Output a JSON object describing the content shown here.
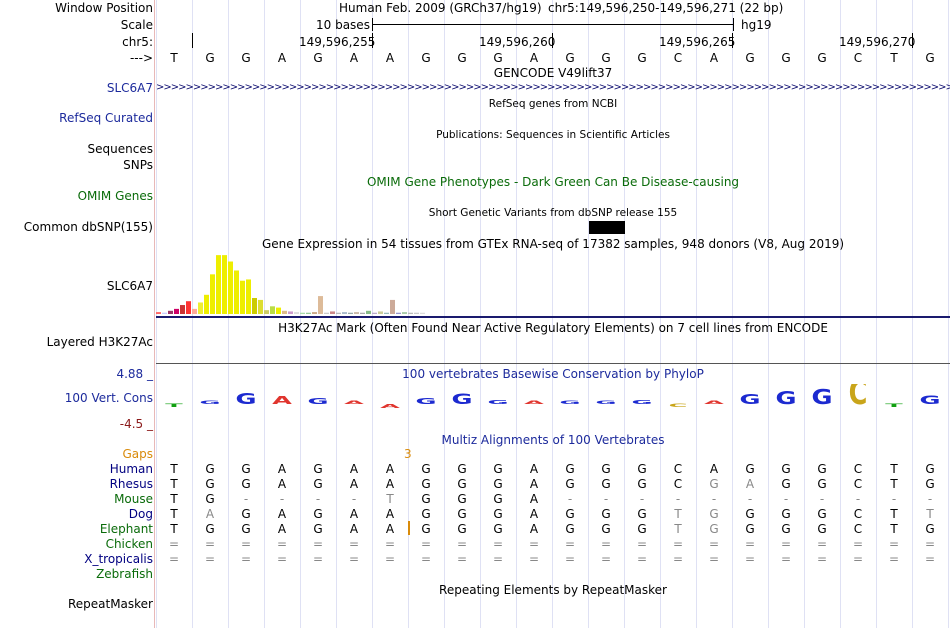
{
  "header": {
    "window_position_label": "Window Position",
    "scale_label": "Scale",
    "chrom_label": "chr5:",
    "strand_label": "--->",
    "assembly_text": "Human Feb. 2009 (GRCh37/hg19)",
    "position_text": "chr5:149,596,250-149,596,271 (22 bp)",
    "scale_text": "10 bases",
    "db_text": "hg19",
    "ticks": [
      "149,596,255",
      "149,596,260",
      "149,596,265",
      "149,596,270"
    ]
  },
  "sequence": [
    "T",
    "G",
    "G",
    "A",
    "G",
    "A",
    "A",
    "G",
    "G",
    "G",
    "A",
    "G",
    "G",
    "G",
    "C",
    "A",
    "G",
    "G",
    "G",
    "C",
    "T",
    "G"
  ],
  "tracks": {
    "gencode": {
      "title": "GENCODE V49lift37",
      "label": "SLC6A7"
    },
    "refseq": {
      "title": "RefSeq genes from NCBI",
      "label": "RefSeq Curated"
    },
    "publications": {
      "title": "Publications: Sequences in Scientific Articles",
      "label1": "Sequences",
      "label2": "SNPs"
    },
    "omim": {
      "title": "OMIM Gene Phenotypes - Dark Green Can Be Disease-causing",
      "label": "OMIM Genes"
    },
    "dbsnp": {
      "title": "Short Genetic Variants from dbSNP release 155",
      "label": "Common dbSNP(155)"
    },
    "gtex": {
      "title": "Gene Expression in 54 tissues from GTEx RNA-seq of 17382 samples, 948 donors (V8, Aug 2019)",
      "label": "SLC6A7",
      "values": [
        3,
        2,
        5,
        8,
        14,
        20,
        8,
        18,
        30,
        62,
        92,
        92,
        82,
        68,
        52,
        54,
        25,
        22,
        6,
        12,
        10,
        5,
        4,
        3,
        2,
        2,
        3,
        28,
        2,
        4,
        2,
        3,
        2,
        3,
        2,
        5,
        2,
        4,
        2,
        22,
        2,
        3,
        2,
        2,
        2
      ],
      "colors": [
        "#ff6666",
        "#ccccff",
        "#993366",
        "#cc0066",
        "#cc3333",
        "#ff3333",
        "#ffaa99",
        "#eeee33",
        "#eeee00",
        "#eeee00",
        "#eeee00",
        "#eeee00",
        "#eeee00",
        "#eeee00",
        "#eeee00",
        "#eeee00",
        "#cccc00",
        "#dddd33",
        "#cccc66",
        "#bbdd44",
        "#eeee00",
        "#ddbb88",
        "#cc99cc",
        "#dddddd",
        "#aaddaa",
        "#99cc99",
        "#ccaa88",
        "#ddbb99",
        "#cccccc",
        "#cc8888",
        "#bbbbbb",
        "#aabbcc",
        "#99aaaa",
        "#ccbbaa",
        "#aaaaaa",
        "#88bb88",
        "#bbaacc",
        "#cccc99",
        "#99bbbb",
        "#ccaa99",
        "#9999cc",
        "#aaccaa",
        "#bbbbbb",
        "#cccccc",
        "#dddddd"
      ]
    },
    "h3k27ac": {
      "title": "H3K27Ac Mark (Often Found Near Active Regulatory Elements) on 7 cell lines from ENCODE",
      "label": "Layered H3K27Ac"
    },
    "cons": {
      "title": "100 vertebrates Basewise Conservation by PhyloP",
      "label": "100 Vert. Cons",
      "max": "4.88 _",
      "min": "-4.5 _",
      "scores": [
        -0.3,
        0.3,
        1.6,
        1.1,
        0.8,
        0.4,
        -0.6,
        0.8,
        1.5,
        0.6,
        0.4,
        0.4,
        0.2,
        0.6,
        -0.2,
        0.3,
        1.4,
        1.9,
        2.2,
        3.6,
        -0.3,
        1.2
      ]
    },
    "multiz": {
      "title": "Multiz Alignments of 100 Vertebrates",
      "gaps_label": "Gaps",
      "gap_count": "3",
      "species": [
        {
          "name": "Human",
          "bases": [
            "T",
            "G",
            "G",
            "A",
            "G",
            "A",
            "A",
            "G",
            "G",
            "G",
            "A",
            "G",
            "G",
            "G",
            "C",
            "A",
            "G",
            "G",
            "G",
            "C",
            "T",
            "G"
          ]
        },
        {
          "name": "Rhesus",
          "bases": [
            "T",
            "G",
            "G",
            "A",
            "G",
            "A",
            "A",
            "G",
            "G",
            "G",
            "A",
            "G",
            "G",
            "G",
            "C",
            "G",
            "A",
            "G",
            "G",
            "C",
            "T",
            "G"
          ]
        },
        {
          "name": "Mouse",
          "bases": [
            "T",
            "G",
            "-",
            "-",
            "-",
            "-",
            "T",
            "G",
            "G",
            "G",
            "A",
            "-",
            "-",
            "-",
            "-",
            "-",
            "-",
            "-",
            "-",
            "-",
            "-",
            "-"
          ]
        },
        {
          "name": "Dog",
          "bases": [
            "T",
            "A",
            "G",
            "A",
            "G",
            "A",
            "A",
            "G",
            "G",
            "G",
            "A",
            "G",
            "G",
            "G",
            "T",
            "G",
            "G",
            "G",
            "G",
            "C",
            "T",
            "T"
          ]
        },
        {
          "name": "Elephant",
          "bases": [
            "T",
            "G",
            "G",
            "A",
            "G",
            "A",
            "A",
            "G",
            "G",
            "G",
            "A",
            "G",
            "G",
            "G",
            "T",
            "G",
            "G",
            "G",
            "G",
            "C",
            "T",
            "G"
          ]
        },
        {
          "name": "Chicken",
          "bases": [
            "=",
            "=",
            "=",
            "=",
            "=",
            "=",
            "=",
            "=",
            "=",
            "=",
            "=",
            "=",
            "=",
            "=",
            "=",
            "=",
            "=",
            "=",
            "=",
            "=",
            "=",
            "="
          ]
        },
        {
          "name": "X_tropicalis",
          "bases": [
            "=",
            "=",
            "=",
            "=",
            "=",
            "=",
            "=",
            "=",
            "=",
            "=",
            "=",
            "=",
            "=",
            "=",
            "=",
            "=",
            "=",
            "=",
            "=",
            "=",
            "=",
            "="
          ]
        },
        {
          "name": "Zebrafish",
          "bases": []
        }
      ]
    },
    "repeatmasker": {
      "title": "Repeating Elements by RepeatMasker",
      "label": "RepeatMasker"
    }
  },
  "colors": {
    "blue_label": "#1c2a9c",
    "green_label": "#0a6b0a",
    "orange": "#d98b0b",
    "navy": "#000080",
    "gtex_baseline": "#1a1a6e"
  }
}
